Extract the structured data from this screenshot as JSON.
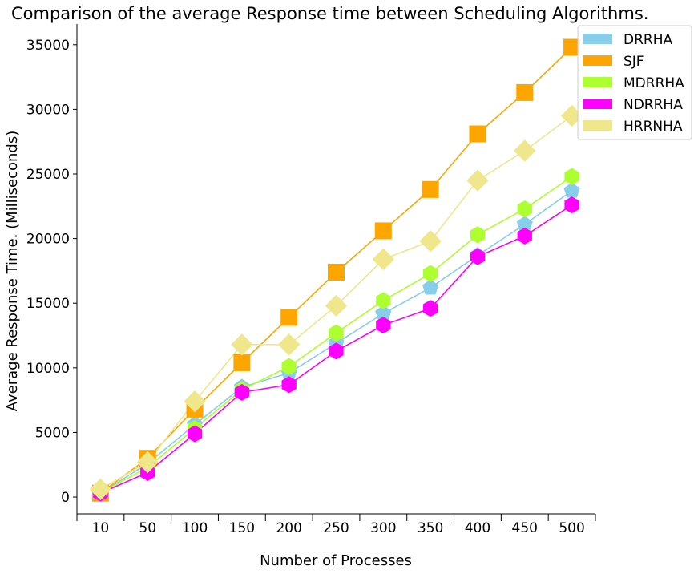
{
  "chart_data": {
    "type": "line",
    "title": "Comparison of the average Response time between Scheduling Algorithms.",
    "xlabel": "Number of Processes",
    "ylabel": "Average Response Time. (Milliseconds)",
    "categories": [
      "10",
      "50",
      "100",
      "150",
      "200",
      "250",
      "300",
      "350",
      "400",
      "450",
      "500"
    ],
    "yticks": [
      "0",
      "5000",
      "10000",
      "15000",
      "20000",
      "25000",
      "30000",
      "35000"
    ],
    "ylim": [
      -1300,
      36600
    ],
    "grid": false,
    "legend_position": "top-right",
    "series": [
      {
        "name": "DRRHA",
        "color": "#87ceeb",
        "marker": "pentagon",
        "values": [
          300,
          2600,
          5600,
          8500,
          9600,
          11900,
          14200,
          16200,
          18700,
          21100,
          23700
        ]
      },
      {
        "name": "SJF",
        "color": "#ffa500",
        "marker": "square",
        "values": [
          300,
          3000,
          6800,
          10400,
          13900,
          17400,
          20600,
          23800,
          28100,
          31300,
          34800
        ]
      },
      {
        "name": "MDRRHA",
        "color": "#adff2f",
        "marker": "hexagon",
        "values": [
          300,
          2300,
          5300,
          8300,
          10100,
          12700,
          15200,
          17300,
          20300,
          22300,
          24800
        ]
      },
      {
        "name": "NDRRHA",
        "color": "#ff00ff",
        "marker": "hexagon",
        "values": [
          300,
          1900,
          4900,
          8100,
          8700,
          11300,
          13300,
          14600,
          18600,
          20200,
          22600
        ]
      },
      {
        "name": "HRRNHA",
        "color": "#f0e68c",
        "marker": "diamond",
        "values": [
          600,
          2700,
          7400,
          11800,
          11800,
          14800,
          18400,
          19800,
          24500,
          26800,
          29500
        ]
      }
    ]
  }
}
